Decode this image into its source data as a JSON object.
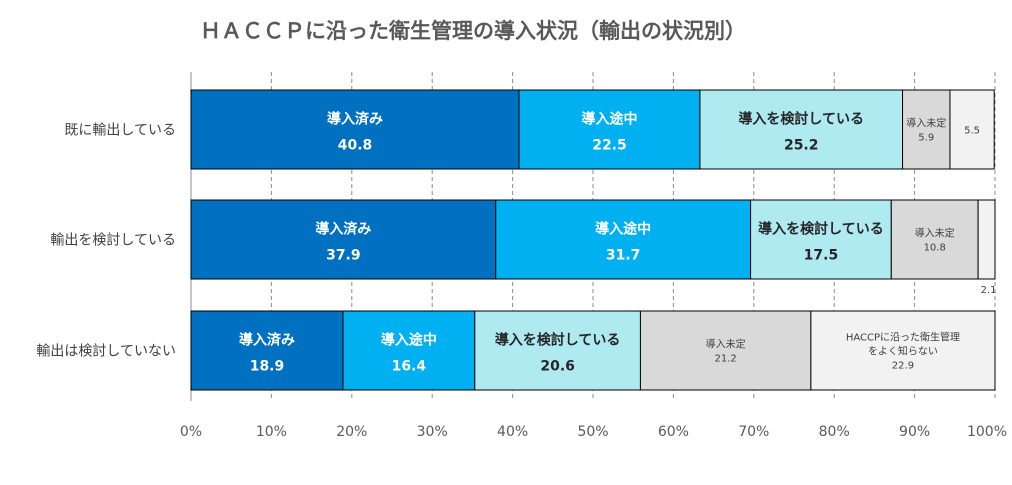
{
  "chart_data": {
    "type": "bar",
    "orientation": "horizontal",
    "stacked": true,
    "percent_stacked": true,
    "title": "ＨＡＣＣＰに沿った衛生管理の導入状況（輸出の状況別）",
    "categories": [
      "既に輸出している",
      "輸出を検討している",
      "輸出は検討していない"
    ],
    "series": [
      {
        "name": "導入済み",
        "values": [
          40.8,
          37.9,
          18.9
        ],
        "color": "#0070C0"
      },
      {
        "name": "導入途中",
        "values": [
          22.5,
          31.7,
          16.4
        ],
        "color": "#00B0F0"
      },
      {
        "name": "導入を検討している",
        "values": [
          25.2,
          17.5,
          20.6
        ],
        "color": "#AEEAF0"
      },
      {
        "name": "導入未定",
        "values": [
          5.9,
          10.8,
          21.2
        ],
        "color": "#D9D9D9"
      },
      {
        "name": "HACCPに沿った衛生管理をよく知らない",
        "values": [
          5.5,
          2.1,
          22.9
        ],
        "color": "#F2F2F2"
      }
    ],
    "segment_labels": [
      [
        "導入済み",
        "導入途中",
        "導入を検討している",
        "導入未定",
        ""
      ],
      [
        "導入済み",
        "導入途中",
        "導入を検討している",
        "導入未定",
        ""
      ],
      [
        "導入済み",
        "導入途中",
        "導入を検討している",
        "導入未定",
        "HACCPに沿った衛生管理\nをよく知らない"
      ]
    ],
    "x_ticks": [
      "0%",
      "10%",
      "20%",
      "30%",
      "40%",
      "50%",
      "60%",
      "70%",
      "80%",
      "90%",
      "100%"
    ],
    "xlim": [
      0,
      100
    ],
    "grid": "vertical dashed",
    "legend": "none"
  }
}
